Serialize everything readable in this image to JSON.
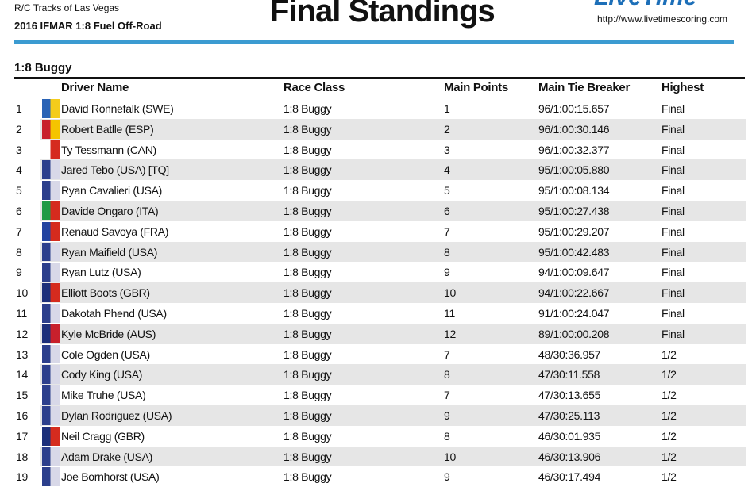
{
  "header": {
    "venue": "R/C Tracks of Las Vegas",
    "event": "2016 IFMAR 1:8 Fuel Off-Road",
    "title": "Final Standings",
    "logo": "LiveTime",
    "url": "http://www.livetimescoring.com"
  },
  "section": "1:8 Buggy",
  "table": {
    "columns": [
      "Driver Name",
      "Race Class",
      "Main Points",
      "Main Tie Breaker",
      "Highest"
    ],
    "rows": [
      [
        1,
        "David Ronnefalk (SWE)",
        "1:8 Buggy",
        1,
        "96/1:00:15.657",
        "Final"
      ],
      [
        2,
        "Robert Batlle (ESP)",
        "1:8 Buggy",
        2,
        "96/1:00:30.146",
        "Final"
      ],
      [
        3,
        "Ty Tessmann (CAN)",
        "1:8 Buggy",
        3,
        "96/1:00:32.377",
        "Final"
      ],
      [
        4,
        "Jared Tebo (USA) [TQ]",
        "1:8 Buggy",
        4,
        "95/1:00:05.880",
        "Final"
      ],
      [
        5,
        "Ryan Cavalieri (USA)",
        "1:8 Buggy",
        5,
        "95/1:00:08.134",
        "Final"
      ],
      [
        6,
        "Davide Ongaro (ITA)",
        "1:8 Buggy",
        6,
        "95/1:00:27.438",
        "Final"
      ],
      [
        7,
        "Renaud Savoya (FRA)",
        "1:8 Buggy",
        7,
        "95/1:00:29.207",
        "Final"
      ],
      [
        8,
        "Ryan Maifield (USA)",
        "1:8 Buggy",
        8,
        "95/1:00:42.483",
        "Final"
      ],
      [
        9,
        "Ryan Lutz (USA)",
        "1:8 Buggy",
        9,
        "94/1:00:09.647",
        "Final"
      ],
      [
        10,
        "Elliott Boots (GBR)",
        "1:8 Buggy",
        10,
        "94/1:00:22.667",
        "Final"
      ],
      [
        11,
        "Dakotah Phend (USA)",
        "1:8 Buggy",
        11,
        "91/1:00:24.047",
        "Final"
      ],
      [
        12,
        "Kyle McBride (AUS)",
        "1:8 Buggy",
        12,
        "89/1:00:00.208",
        "Final"
      ],
      [
        13,
        "Cole Ogden (USA)",
        "1:8 Buggy",
        7,
        "48/30:36.957",
        "1/2"
      ],
      [
        14,
        "Cody King (USA)",
        "1:8 Buggy",
        8,
        "47/30:11.558",
        "1/2"
      ],
      [
        15,
        "Mike Truhe (USA)",
        "1:8 Buggy",
        7,
        "47/30:13.655",
        "1/2"
      ],
      [
        16,
        "Dylan Rodriguez (USA)",
        "1:8 Buggy",
        9,
        "47/30:25.113",
        "1/2"
      ],
      [
        17,
        "Neil Cragg (GBR)",
        "1:8 Buggy",
        8,
        "46/30:01.935",
        "1/2"
      ],
      [
        18,
        "Adam Drake (USA)",
        "1:8 Buggy",
        10,
        "46/30:13.906",
        "1/2"
      ],
      [
        19,
        "Joe Bornhorst (USA)",
        "1:8 Buggy",
        9,
        "46/30:17.494",
        "1/2"
      ]
    ]
  }
}
